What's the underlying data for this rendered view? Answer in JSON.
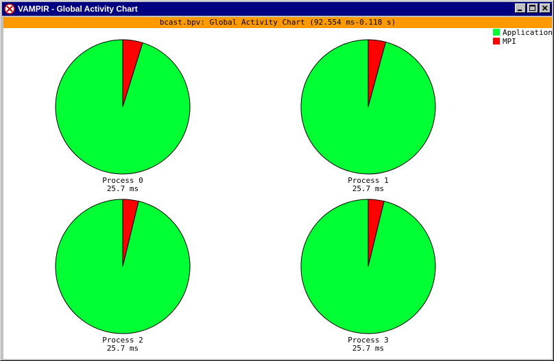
{
  "window": {
    "title": "VAMPIR - Global Activity Chart",
    "titlebar_color": "#000080"
  },
  "header": {
    "text": "bcast.bpv: Global Activity Chart (92.554 ms-0.118 s)",
    "background": "#ff9900"
  },
  "icons": [
    "vampir-app-icon",
    "minimize-icon",
    "maximize-icon",
    "close-icon"
  ],
  "chart_data": {
    "type": "pie",
    "title": "",
    "legend": {
      "placement": "top-right",
      "entries": [
        {
          "label": "Application",
          "color": "#00ff33"
        },
        {
          "label": "MPI",
          "color": "#ff0000"
        }
      ]
    },
    "pies": [
      {
        "name": "Process 0",
        "total": "25.7 ms",
        "slices": [
          {
            "label": "Application",
            "value": 95.2
          },
          {
            "label": "MPI",
            "value": 4.8
          }
        ]
      },
      {
        "name": "Process 1",
        "total": "25.7 ms",
        "slices": [
          {
            "label": "Application",
            "value": 95.8
          },
          {
            "label": "MPI",
            "value": 4.2
          }
        ]
      },
      {
        "name": "Process 2",
        "total": "25.7 ms",
        "slices": [
          {
            "label": "Application",
            "value": 96.2
          },
          {
            "label": "MPI",
            "value": 3.8
          }
        ]
      },
      {
        "name": "Process 3",
        "total": "25.7 ms",
        "slices": [
          {
            "label": "Application",
            "value": 96.2
          },
          {
            "label": "MPI",
            "value": 3.8
          }
        ]
      }
    ]
  }
}
